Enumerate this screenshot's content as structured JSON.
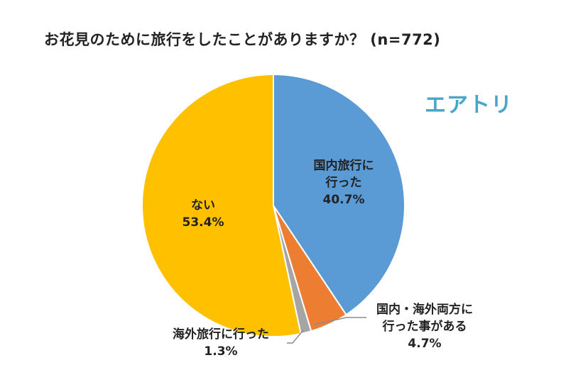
{
  "header": {
    "title": "お花見のために旅行をしたことがありますか？ (n=772)",
    "brand": "エアトリ"
  },
  "colors": {
    "domestic": "#5b9bd5",
    "both": "#ed7d31",
    "overseas": "#a5a5a5",
    "none": "#ffc000",
    "brand": "#4aa6c9"
  },
  "chart_data": {
    "type": "pie",
    "title": "お花見のために旅行をしたことがありますか？ (n=772)",
    "start": "12 o'clock",
    "direction": "clockwise",
    "series": [
      {
        "name": "",
        "values": [
          {
            "label": "国内旅行に行った",
            "value": 40.7,
            "text": "40.7%",
            "color_key": "domestic",
            "label_lines": [
              "国内旅行に",
              "行った",
              "40.7%"
            ]
          },
          {
            "label": "国内・海外両方に行った事がある",
            "value": 4.7,
            "text": "4.7%",
            "color_key": "both",
            "label_lines": [
              "国内・海外両方に",
              "行った事がある",
              "4.7%"
            ]
          },
          {
            "label": "海外旅行に行った",
            "value": 1.3,
            "text": "1.3%",
            "color_key": "overseas",
            "label_lines": [
              "海外旅行に行った",
              "1.3%"
            ]
          },
          {
            "label": "ない",
            "value": 53.4,
            "text": "53.4%",
            "color_key": "none",
            "label_lines": [
              "ない",
              "53.4%"
            ]
          }
        ]
      }
    ]
  }
}
